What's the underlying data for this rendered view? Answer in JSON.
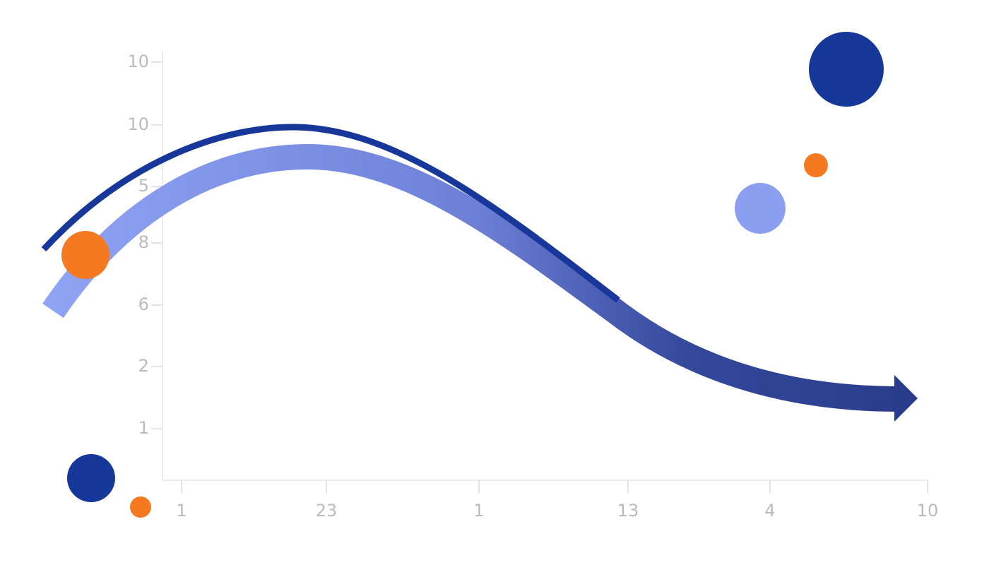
{
  "axes": {
    "y_labels": [
      "10",
      "10",
      "5",
      "8",
      "6",
      "2",
      "1"
    ],
    "x_labels": [
      "1",
      "23",
      "1",
      "13",
      "4",
      "10"
    ]
  }
}
